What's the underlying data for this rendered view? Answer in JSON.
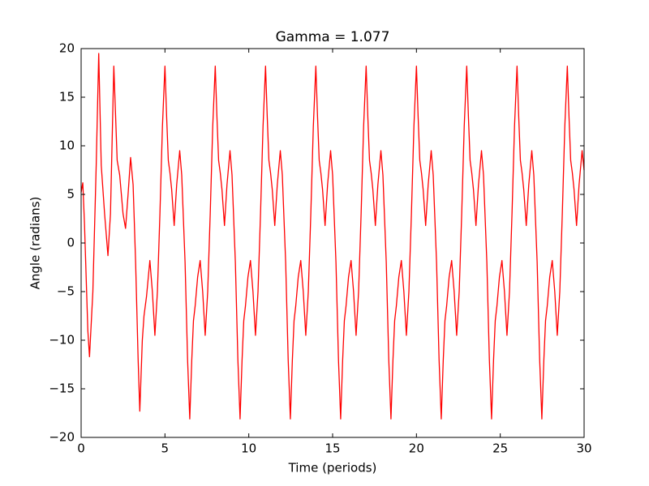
{
  "chart_data": {
    "type": "line",
    "title": "Gamma = 1.077",
    "x_label": "Time (periods)",
    "y_label": "Angle (radians)",
    "color": "#ff0000",
    "x": [
      0,
      0.1,
      0.2,
      0.4,
      0.5,
      0.7,
      0.9,
      1.05,
      1.2,
      1.4,
      1.6,
      1.75,
      1.95,
      2.15,
      2.3,
      2.5,
      2.65,
      2.8,
      2.95,
      3.1,
      3.25,
      3.4,
      3.5,
      3.65,
      3.75,
      3.9,
      4.1,
      4.25,
      4.4,
      4.55,
      4.7,
      4.85,
      5,
      5.1,
      5.2,
      5.3,
      5.4,
      5.55,
      5.7,
      5.88,
      6,
      6.2,
      6.35,
      6.48,
      6.6,
      6.7,
      6.8,
      6.95,
      7.1,
      7.25,
      7.4,
      7.55,
      7.7,
      7.85,
      8,
      8.1,
      8.2,
      8.3,
      8.4,
      8.55,
      8.7,
      8.88,
      9,
      9.2,
      9.35,
      9.48,
      9.6,
      9.7,
      9.8,
      9.95,
      10.1,
      10.25,
      10.4,
      10.55,
      10.7,
      10.85,
      11,
      11.1,
      11.2,
      11.3,
      11.4,
      11.55,
      11.7,
      11.88,
      12,
      12.2,
      12.35,
      12.48,
      12.6,
      12.7,
      12.8,
      12.95,
      13.1,
      13.25,
      13.4,
      13.55,
      13.7,
      13.85,
      14,
      14.1,
      14.2,
      14.3,
      14.4,
      14.55,
      14.7,
      14.88,
      15,
      15.2,
      15.35,
      15.48,
      15.6,
      15.7,
      15.8,
      15.95,
      16.1,
      16.25,
      16.4,
      16.55,
      16.7,
      16.85,
      17,
      17.1,
      17.2,
      17.3,
      17.4,
      17.55,
      17.7,
      17.88,
      18,
      18.2,
      18.35,
      18.48,
      18.6,
      18.7,
      18.8,
      18.95,
      19.1,
      19.25,
      19.4,
      19.55,
      19.7,
      19.85,
      20,
      20.1,
      20.2,
      20.3,
      20.4,
      20.55,
      20.7,
      20.88,
      21,
      21.2,
      21.35,
      21.48,
      21.6,
      21.7,
      21.8,
      21.95,
      22.1,
      22.25,
      22.4,
      22.55,
      22.7,
      22.85,
      23,
      23.1,
      23.2,
      23.3,
      23.4,
      23.55,
      23.7,
      23.88,
      24,
      24.2,
      24.35,
      24.48,
      24.6,
      24.7,
      24.8,
      24.95,
      25.1,
      25.25,
      25.4,
      25.55,
      25.7,
      25.85,
      26,
      26.1,
      26.2,
      26.3,
      26.4,
      26.55,
      26.7,
      26.88,
      27,
      27.2,
      27.35,
      27.48,
      27.6,
      27.7,
      27.8,
      27.95,
      28.1,
      28.25,
      28.4,
      28.55,
      28.7,
      28.85,
      29,
      29.1,
      29.2,
      29.3,
      29.4,
      29.55,
      29.7,
      29.88,
      30
    ],
    "values": [
      5.2,
      6.2,
      2,
      -9,
      -11.7,
      -5,
      8,
      19.5,
      8,
      3,
      -1.3,
      3,
      18.2,
      8.5,
      7,
      3,
      1.5,
      5,
      8.8,
      6,
      -2,
      -12,
      -17.3,
      -10,
      -7.5,
      -5.5,
      -1.8,
      -5,
      -9.5,
      -5,
      3,
      12,
      18.2,
      13,
      8.5,
      7.2,
      5.5,
      1.8,
      6,
      9.5,
      7,
      -2,
      -12,
      -18.1,
      -12,
      -8,
      -6.5,
      -3.5,
      -1.8,
      -5,
      -9.5,
      -5,
      3,
      12,
      18.2,
      13,
      8.5,
      7.2,
      5.5,
      1.8,
      6,
      9.5,
      7,
      -2,
      -12,
      -18.1,
      -12,
      -8,
      -6.5,
      -3.5,
      -1.8,
      -5,
      -9.5,
      -5,
      3,
      12,
      18.2,
      13,
      8.5,
      7.2,
      5.5,
      1.8,
      6,
      9.5,
      7,
      -2,
      -12,
      -18.1,
      -12,
      -8,
      -6.5,
      -3.5,
      -1.8,
      -5,
      -9.5,
      -5,
      3,
      12,
      18.2,
      13,
      8.5,
      7.2,
      5.5,
      1.8,
      6,
      9.5,
      7,
      -2,
      -12,
      -18.1,
      -12,
      -8,
      -6.5,
      -3.5,
      -1.8,
      -5,
      -9.5,
      -5,
      3,
      12,
      18.2,
      13,
      8.5,
      7.2,
      5.5,
      1.8,
      6,
      9.5,
      7,
      -2,
      -12,
      -18.1,
      -12,
      -8,
      -6.5,
      -3.5,
      -1.8,
      -5,
      -9.5,
      -5,
      3,
      12,
      18.2,
      13,
      8.5,
      7.2,
      5.5,
      1.8,
      6,
      9.5,
      7,
      -2,
      -12,
      -18.1,
      -12,
      -8,
      -6.5,
      -3.5,
      -1.8,
      -5,
      -9.5,
      -5,
      3,
      12,
      18.2,
      13,
      8.5,
      7.2,
      5.5,
      1.8,
      6,
      9.5,
      7,
      -2,
      -12,
      -18.1,
      -12,
      -8,
      -6.5,
      -3.5,
      -1.8,
      -5,
      -9.5,
      -5,
      3,
      12,
      18.2,
      13,
      8.5,
      7.2,
      5.5,
      1.8,
      6,
      9.5,
      7,
      -2,
      -12,
      -18.1,
      -12,
      -8,
      -6.5,
      -3.5,
      -1.8,
      -5,
      -9.5,
      -5,
      3,
      12,
      18.2,
      13,
      8.5,
      7.2,
      5.5,
      1.8,
      6,
      9.5,
      7.5
    ],
    "xlim": [
      0,
      30
    ],
    "xticks": [
      0,
      5,
      10,
      15,
      20,
      25,
      30
    ],
    "ylim": [
      -20,
      20
    ],
    "yticks": [
      {
        "value": -20,
        "label": "−20"
      },
      {
        "value": -15,
        "label": "−15"
      },
      {
        "value": -10,
        "label": "−10"
      },
      {
        "value": -5,
        "label": "−5"
      },
      0,
      5,
      10,
      15,
      20
    ],
    "grid": false
  }
}
